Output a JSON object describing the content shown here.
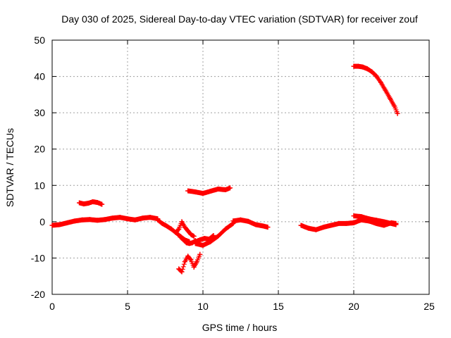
{
  "chart_data": {
    "type": "scatter",
    "title": "Day 030 of 2025, Sidereal Day-to-day VTEC variation (SDTVAR) for receiver zouf",
    "xlabel": "GPS time / hours",
    "ylabel": "SDTVAR / TECUs",
    "xlim": [
      0,
      25
    ],
    "ylim": [
      -20,
      50
    ],
    "xticks": [
      0,
      5,
      10,
      15,
      20,
      25
    ],
    "yticks": [
      -20,
      -10,
      0,
      10,
      20,
      30,
      40,
      50
    ],
    "grid": true,
    "marker": "+",
    "series_color": "#ff0000",
    "segments": [
      {
        "name": "baseline-morning",
        "x": [
          0,
          0.5,
          1,
          1.5,
          2,
          2.5,
          3,
          3.5,
          4,
          4.5,
          5,
          5.5,
          6,
          6.5,
          7
        ],
        "y": [
          -1,
          -0.8,
          -0.3,
          0.2,
          0.5,
          0.6,
          0.4,
          0.6,
          1,
          1.2,
          0.8,
          0.5,
          1,
          1.2,
          0.8
        ]
      },
      {
        "name": "bump-2-3h",
        "x": [
          1.8,
          2.1,
          2.4,
          2.7,
          3.0,
          3.3
        ],
        "y": [
          5.2,
          4.9,
          5.1,
          5.5,
          5.3,
          4.8
        ]
      },
      {
        "name": "descent-7-9h",
        "x": [
          7,
          7.3,
          7.6,
          7.9,
          8.2,
          8.5,
          8.8,
          9.1
        ],
        "y": [
          0.5,
          -0.5,
          -1.2,
          -2,
          -3,
          -4,
          -5,
          -5.5
        ]
      },
      {
        "name": "dip-9-10h",
        "x": [
          8.4,
          8.6,
          8.8,
          9.0,
          9.2,
          9.4,
          9.6,
          9.8
        ],
        "y": [
          -13,
          -13.8,
          -11,
          -9.5,
          -10.5,
          -12.5,
          -11,
          -9
        ]
      },
      {
        "name": "spike-9h",
        "x": [
          8.2,
          8.4,
          8.6,
          8.8,
          9.0,
          9.2,
          9.4
        ],
        "y": [
          -3,
          -2,
          0,
          -1.5,
          -2.5,
          -3.5,
          -4
        ]
      },
      {
        "name": "arc-8.5-9.5h",
        "x": [
          8.5,
          8.7,
          8.9,
          9.1,
          9.3,
          9.5
        ],
        "y": [
          -4.2,
          -5,
          -5.8,
          -6,
          -5.8,
          -5.2
        ]
      },
      {
        "name": "plateau-9-12h",
        "x": [
          9,
          9.5,
          10,
          10.5,
          11,
          11.5,
          11.8
        ],
        "y": [
          8.5,
          8.2,
          7.8,
          8.4,
          9,
          8.8,
          9.3
        ]
      },
      {
        "name": "recovery-9.5-12h",
        "x": [
          9.5,
          10,
          10.5,
          11,
          11.5,
          12
        ],
        "y": [
          -6,
          -6.5,
          -5.5,
          -4,
          -2,
          -0.5
        ]
      },
      {
        "name": "recovery-9.5-11h",
        "x": [
          9.5,
          9.8,
          10.1,
          10.4,
          10.7
        ],
        "y": [
          -5.5,
          -5,
          -4.6,
          -4.8,
          -3.8
        ]
      },
      {
        "name": "bump-12-14h",
        "x": [
          12,
          12.5,
          13,
          13.5,
          14,
          14.3
        ],
        "y": [
          0.2,
          0.5,
          0.1,
          -0.8,
          -1.2,
          -1.5
        ]
      },
      {
        "name": "baseline-afternoon",
        "x": [
          16.5,
          17,
          17.5,
          18,
          18.5,
          19,
          19.5,
          20,
          20.5,
          21,
          21.5,
          22,
          22.5,
          22.8
        ],
        "y": [
          -1,
          -1.8,
          -2.2,
          -1.5,
          -1,
          -0.5,
          -0.5,
          -0.3,
          0.5,
          0.2,
          -0.5,
          -1,
          -0.3,
          -0.5
        ]
      },
      {
        "name": "band-20-23h",
        "x": [
          20,
          20.5,
          21,
          21.5,
          22,
          22.5,
          22.8
        ],
        "y": [
          1.6,
          1.4,
          0.8,
          0.4,
          0,
          -0.5,
          -0.8
        ]
      },
      {
        "name": "high-arc-20-23h",
        "x": [
          20,
          20.3,
          20.6,
          20.9,
          21.2,
          21.5,
          21.8,
          22.1,
          22.4,
          22.7,
          22.9
        ],
        "y": [
          42.8,
          42.8,
          42.6,
          42.1,
          41.3,
          40.1,
          38.3,
          36.2,
          34,
          31.8,
          29.8
        ]
      }
    ]
  }
}
